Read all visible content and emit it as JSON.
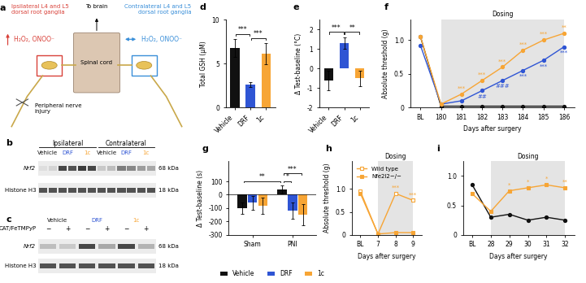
{
  "figure": {
    "legend": {
      "entries": [
        {
          "name": "Vehicle",
          "color": "#111111"
        },
        {
          "name": "DRF",
          "color": "#2f55d4"
        },
        {
          "name": "1c",
          "color": "#f7a535"
        }
      ],
      "legend": "lower center"
    }
  },
  "diagram": {
    "label": "a",
    "ipsilateral": "Ipsilateral L4 and L5\ndorsal root ganglia",
    "contralateral": "Contralateral L4 and L5\ndorsal root ganglia",
    "spinal_cord": "Spinal cord",
    "to_brain": "To brain",
    "injury": "Peripheral nerve\ninjury",
    "ipsilateral_species": "H₂O₂, ONOO⁻",
    "contralateral_species": "H₂O₂, ONOO⁻",
    "ipsilateral_color": "#d9423a",
    "contralateral_color": "#3a8fd9"
  },
  "blots": [
    {
      "label": "b",
      "regions": [
        "Ipsilateral",
        "Contralateral"
      ],
      "groups": [
        "Vehicle",
        "DRF",
        "1c"
      ],
      "lanes_per_group": 2,
      "rows": [
        {
          "name": "Nrf2",
          "size": "68 kDa",
          "intensity": [
            0.15,
            0.2,
            0.85,
            0.8,
            0.9,
            0.85,
            0.25,
            0.3,
            0.6,
            0.55,
            0.45,
            0.4
          ]
        },
        {
          "name": "Histone H3",
          "size": "18 kDa",
          "intensity": [
            0.8,
            0.8,
            0.8,
            0.8,
            0.8,
            0.8,
            0.8,
            0.8,
            0.8,
            0.8,
            0.8,
            0.8
          ]
        }
      ]
    },
    {
      "label": "c",
      "groups": [
        "Vehicle",
        "DRF",
        "1c"
      ],
      "treatment": {
        "name": "CAT/FeTMPyP",
        "levels": [
          "−",
          "+"
        ]
      },
      "rows": [
        {
          "name": "Nrf2",
          "size": "68 kDa",
          "intensity": [
            0.3,
            0.25,
            0.85,
            0.4,
            0.85,
            0.35
          ]
        },
        {
          "name": "Histone H3",
          "size": "18 kDa",
          "intensity": [
            0.8,
            0.8,
            0.8,
            0.8,
            0.8,
            0.8
          ]
        }
      ]
    }
  ],
  "chart_data": [
    {
      "label": "d",
      "type": "bar",
      "categories": [
        "Vehicle",
        "DRF",
        "1c"
      ],
      "values": [
        6.8,
        2.6,
        6.1
      ],
      "errors": [
        1.0,
        0.3,
        1.2
      ],
      "colors": [
        "#111111",
        "#2f55d4",
        "#f7a535"
      ],
      "y_label": "Total GSH (μM)",
      "ylim": [
        0,
        10
      ],
      "yticks": [
        0,
        5,
        10
      ],
      "brackets": [
        {
          "from": "Vehicle",
          "to": "DRF",
          "text": "***"
        },
        {
          "from": "DRF",
          "to": "1c",
          "text": "***"
        }
      ]
    },
    {
      "label": "e",
      "type": "bar",
      "categories": [
        "Vehicle",
        "DRF",
        "1c"
      ],
      "values": [
        -0.6,
        1.3,
        -0.5
      ],
      "errors": [
        0.5,
        0.3,
        0.4
      ],
      "colors": [
        "#111111",
        "#2f55d4",
        "#f7a535"
      ],
      "y_label": "Δ Test-baseline (°C)",
      "ylim": [
        -2,
        2.5
      ],
      "yticks": [
        -2,
        -1,
        0,
        1,
        2
      ],
      "brackets": [
        {
          "from": "Vehicle",
          "to": "DRF",
          "text": "***"
        },
        {
          "from": "DRF",
          "to": "1c",
          "text": "**"
        }
      ]
    },
    {
      "label": "f",
      "type": "line",
      "categories": [
        "BL",
        "180",
        "181",
        "182",
        "183",
        "184",
        "185",
        "186"
      ],
      "x_label": "Days after surgery",
      "y_label": "Absolute threshold (g)",
      "ylim": [
        0,
        1.3
      ],
      "yticks": [
        0,
        0.5,
        {
          "value": 1.0,
          "label": "1.0"
        }
      ],
      "shade": {
        "text": "Dosing",
        "start": "180",
        "end": "186"
      },
      "series": [
        {
          "name": "Vehicle",
          "color": "#111111",
          "marker": "circle",
          "values": [
            1.05,
            0.02,
            0.02,
            0.02,
            0.02,
            0.02,
            0.02,
            0.02
          ]
        },
        {
          "name": "DRF",
          "color": "#2f55d4",
          "marker": "circle",
          "values": [
            0.92,
            0.05,
            0.1,
            0.25,
            0.4,
            0.55,
            0.7,
            0.9
          ]
        },
        {
          "name": "1c",
          "color": "#f7a535",
          "marker": "circle",
          "values": [
            1.05,
            0.05,
            0.2,
            0.4,
            0.6,
            0.85,
            1.0,
            1.1
          ]
        }
      ],
      "annotations": [
        {
          "series": "1c",
          "category": "181",
          "text": "***"
        },
        {
          "series": "1c",
          "category": "182",
          "text": "***"
        },
        {
          "series": "1c",
          "category": "183",
          "text": "***"
        },
        {
          "series": "1c",
          "category": "184",
          "text": "***"
        },
        {
          "series": "1c",
          "category": "185",
          "text": "***"
        },
        {
          "series": "1c",
          "category": "186",
          "text": "**"
        },
        {
          "series": "DRF",
          "category": "182",
          "text": "##"
        },
        {
          "series": "DRF",
          "category": "183",
          "text": "###"
        },
        {
          "series": "DRF",
          "category": "184",
          "text": "***"
        },
        {
          "series": "DRF",
          "category": "185",
          "text": "***"
        },
        {
          "series": "DRF",
          "category": "186",
          "text": "***"
        }
      ]
    },
    {
      "label": "g",
      "type": "grouped_bar",
      "categories": [
        "Sham",
        "PNI"
      ],
      "y_label": "Δ Test-baseline (s)",
      "ylim": [
        -300,
        250
      ],
      "yticks": [
        -300,
        -200,
        -100,
        0,
        100
      ],
      "series": [
        {
          "name": "Vehicle",
          "color": "#111111",
          "values": [
            -100,
            40
          ],
          "errors": [
            40,
            30
          ]
        },
        {
          "name": "DRF",
          "color": "#2f55d4",
          "values": [
            -60,
            -120
          ],
          "errors": [
            50,
            60
          ]
        },
        {
          "name": "1c",
          "color": "#f7a535",
          "values": [
            -80,
            -150
          ],
          "errors": [
            60,
            80
          ]
        }
      ],
      "brackets": [
        {
          "from": [
            "PNI",
            "Vehicle"
          ],
          "to": [
            "PNI",
            "DRF"
          ],
          "text": "*"
        },
        {
          "from": [
            "PNI",
            "Vehicle"
          ],
          "to": [
            "PNI",
            "1c"
          ],
          "text": "***"
        },
        {
          "from": [
            "Sham",
            "Vehicle"
          ],
          "to": [
            "PNI",
            "Vehicle"
          ],
          "text": "**"
        }
      ]
    },
    {
      "label": "h",
      "type": "line",
      "categories": [
        "BL",
        "7",
        "8",
        "9"
      ],
      "x_label": "Days after surgery",
      "y_label": "Absolute threshold (g)",
      "ylim": [
        0,
        1.6
      ],
      "yticks": [
        0,
        0.5,
        {
          "value": 1.0,
          "label": "1.0"
        }
      ],
      "shade": {
        "text": "Dosing",
        "start": "7",
        "end": "9"
      },
      "legend": "upper left",
      "series": [
        {
          "name": "Wild type",
          "color": "#f7a535",
          "marker": "square_open",
          "values": [
            0.95,
            0.02,
            0.9,
            0.75
          ]
        },
        {
          "name": "Nfe2l2−/−",
          "color": "#f7a535",
          "marker": "square",
          "values": [
            0.9,
            0.02,
            0.05,
            0.05
          ]
        }
      ],
      "annotations": [
        {
          "series": "Wild type",
          "category": "8",
          "text": "***"
        },
        {
          "series": "Wild type",
          "category": "9",
          "text": "***"
        }
      ]
    },
    {
      "label": "i",
      "type": "line",
      "categories": [
        "BL",
        "28",
        "29",
        "30",
        "31",
        "32"
      ],
      "x_label": "Days after surgery",
      "ylim": [
        0,
        1.25
      ],
      "yticks": [
        0,
        0.5,
        {
          "value": 1.0,
          "label": "1.0"
        }
      ],
      "shade": {
        "text": "Dosing",
        "start": "28",
        "end": "32"
      },
      "series": [
        {
          "name": "Vehicle",
          "color": "#111111",
          "marker": "circle",
          "values": [
            0.85,
            0.3,
            0.35,
            0.25,
            0.3,
            0.25
          ]
        },
        {
          "name": "1c",
          "color": "#f7a535",
          "marker": "square",
          "values": [
            0.7,
            0.4,
            0.75,
            0.8,
            0.85,
            0.8
          ]
        }
      ],
      "annotations": [
        {
          "series": "1c",
          "category": "29",
          "text": "*"
        },
        {
          "series": "1c",
          "category": "30",
          "text": "*"
        },
        {
          "series": "1c",
          "category": "31",
          "text": "*"
        },
        {
          "series": "1c",
          "category": "32",
          "text": "**"
        }
      ]
    }
  ]
}
